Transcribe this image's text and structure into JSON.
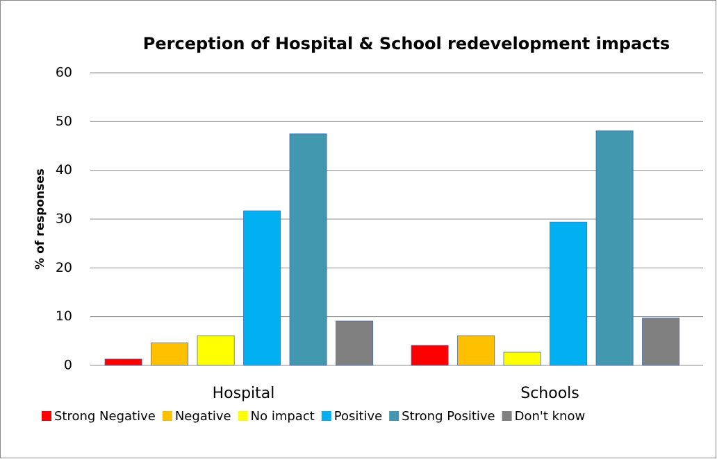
{
  "chart_data": {
    "type": "bar",
    "title": "Perception of Hospital & School redevelopment impacts",
    "y_label": "% of responses",
    "categories": [
      "Hospital",
      "Schools"
    ],
    "series": [
      {
        "name": "Strong Negative",
        "color": "#ff0000",
        "values": [
          1.3,
          4.1
        ]
      },
      {
        "name": "Negative",
        "color": "#ffc000",
        "values": [
          4.6,
          6.1
        ]
      },
      {
        "name": "No impact",
        "color": "#ffff00",
        "values": [
          6.1,
          2.7
        ]
      },
      {
        "name": "Positive",
        "color": "#00b0f0",
        "values": [
          31.7,
          29.4
        ]
      },
      {
        "name": "Strong Positive",
        "color": "#4198af",
        "values": [
          47.5,
          48.1
        ]
      },
      {
        "name": "Don't know",
        "color": "#808080",
        "values": [
          9.1,
          9.7
        ]
      }
    ],
    "ylim": [
      0,
      60
    ],
    "yticks": [
      0,
      10,
      20,
      30,
      40,
      50,
      60
    ],
    "grid": true,
    "legend": "bottom"
  }
}
